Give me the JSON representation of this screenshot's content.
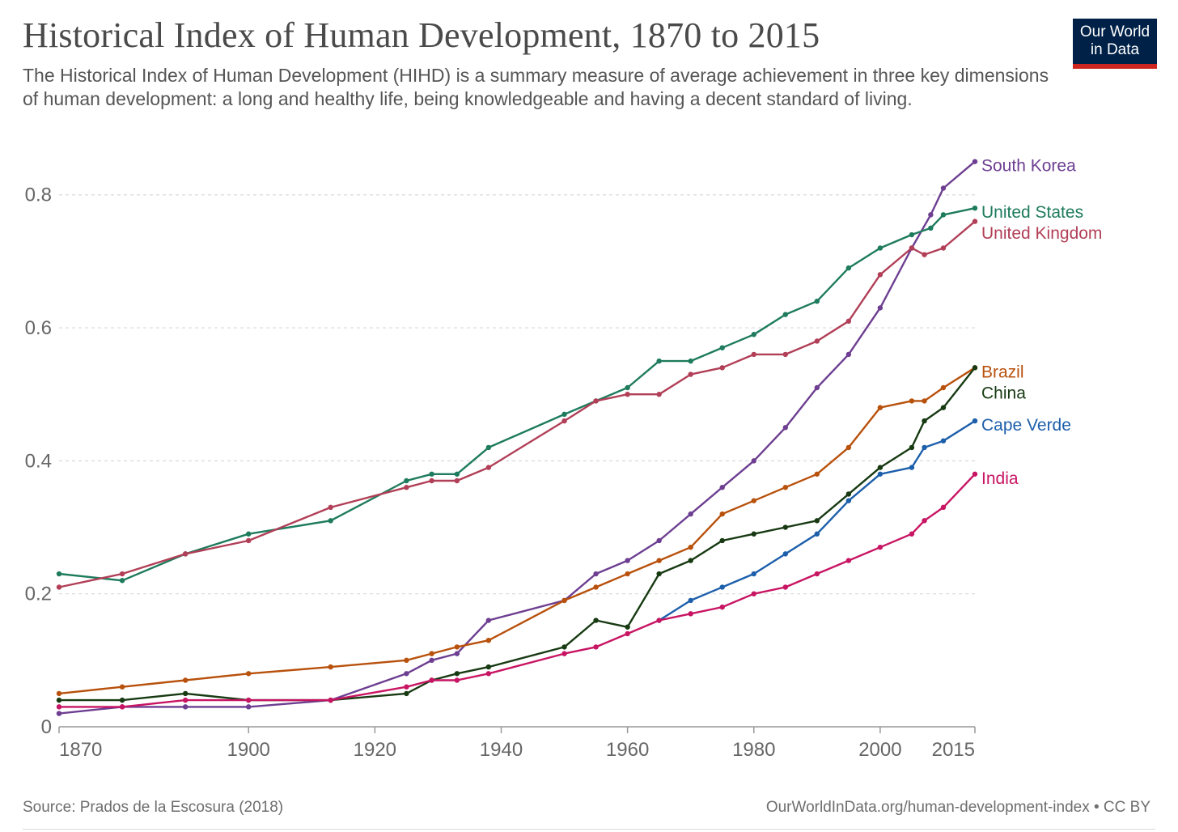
{
  "header": {
    "title": "Historical Index of Human Development, 1870 to 2015",
    "subtitle": "The Historical Index of Human Development (HIHD) is a summary measure of average achievement in three key dimensions of human development: a long and healthy life, being knowledgeable and having a decent standard of living."
  },
  "logo": {
    "line1": "Our World",
    "line2": "in Data",
    "bg_color": "#002147",
    "accent_color": "#ce261e"
  },
  "footer": {
    "source": "Source: Prados de la Escosura (2018)",
    "license": "OurWorldInData.org/human-development-index • CC BY"
  },
  "chart_data": {
    "type": "line",
    "title": "Historical Index of Human Development, 1870 to 2015",
    "xlabel": "",
    "ylabel": "",
    "xlim": [
      1870,
      2015
    ],
    "ylim": [
      0,
      0.88
    ],
    "x_ticks": [
      1870,
      1900,
      1920,
      1940,
      1960,
      1980,
      2000,
      2015
    ],
    "y_ticks": [
      0,
      0.2,
      0.4,
      0.6,
      0.8
    ],
    "y_tick_labels": [
      "0",
      "0.2",
      "0.4",
      "0.6",
      "0.8"
    ],
    "grid": "horizontal dashed",
    "legend": "line-end labels at right",
    "series": [
      {
        "name": "South Korea",
        "color": "#6d3e91",
        "x": [
          1870,
          1880,
          1890,
          1900,
          1913,
          1925,
          1929,
          1933,
          1938,
          1950,
          1955,
          1960,
          1965,
          1970,
          1975,
          1980,
          1985,
          1990,
          1995,
          2000,
          2005,
          2008,
          2010,
          2015
        ],
        "y": [
          0.02,
          0.03,
          0.03,
          0.03,
          0.04,
          0.08,
          0.1,
          0.11,
          0.16,
          0.19,
          0.23,
          0.25,
          0.28,
          0.32,
          0.36,
          0.4,
          0.45,
          0.51,
          0.56,
          0.63,
          0.72,
          0.77,
          0.81,
          0.85
        ]
      },
      {
        "name": "United States",
        "color": "#1e7b5d",
        "x": [
          1870,
          1880,
          1890,
          1900,
          1913,
          1925,
          1929,
          1933,
          1938,
          1950,
          1955,
          1960,
          1965,
          1970,
          1975,
          1980,
          1985,
          1990,
          1995,
          2000,
          2005,
          2008,
          2010,
          2015
        ],
        "y": [
          0.23,
          0.22,
          0.26,
          0.29,
          0.31,
          0.37,
          0.38,
          0.38,
          0.42,
          0.47,
          0.49,
          0.51,
          0.55,
          0.55,
          0.57,
          0.59,
          0.62,
          0.64,
          0.69,
          0.72,
          0.74,
          0.75,
          0.77,
          0.78
        ]
      },
      {
        "name": "United Kingdom",
        "color": "#b13f57",
        "x": [
          1870,
          1880,
          1890,
          1900,
          1913,
          1925,
          1929,
          1933,
          1938,
          1950,
          1955,
          1960,
          1965,
          1970,
          1975,
          1980,
          1985,
          1990,
          1995,
          2000,
          2005,
          2007,
          2010,
          2015
        ],
        "y": [
          0.21,
          0.23,
          0.26,
          0.28,
          0.33,
          0.36,
          0.37,
          0.37,
          0.39,
          0.46,
          0.49,
          0.5,
          0.5,
          0.53,
          0.54,
          0.56,
          0.56,
          0.58,
          0.61,
          0.68,
          0.72,
          0.71,
          0.72,
          0.76
        ]
      },
      {
        "name": "Brazil",
        "color": "#b8510c",
        "x": [
          1870,
          1880,
          1890,
          1900,
          1913,
          1925,
          1929,
          1933,
          1938,
          1950,
          1955,
          1960,
          1965,
          1970,
          1975,
          1980,
          1985,
          1990,
          1995,
          2000,
          2005,
          2007,
          2010,
          2015
        ],
        "y": [
          0.05,
          0.06,
          0.07,
          0.08,
          0.09,
          0.1,
          0.11,
          0.12,
          0.13,
          0.19,
          0.21,
          0.23,
          0.25,
          0.27,
          0.32,
          0.34,
          0.36,
          0.38,
          0.42,
          0.48,
          0.49,
          0.49,
          0.51,
          0.54
        ]
      },
      {
        "name": "China",
        "color": "#173a12",
        "x": [
          1870,
          1880,
          1890,
          1900,
          1913,
          1925,
          1929,
          1933,
          1938,
          1950,
          1955,
          1960,
          1965,
          1970,
          1975,
          1980,
          1985,
          1990,
          1995,
          2000,
          2005,
          2007,
          2010,
          2015
        ],
        "y": [
          0.04,
          0.04,
          0.05,
          0.04,
          0.04,
          0.05,
          0.07,
          0.08,
          0.09,
          0.12,
          0.16,
          0.15,
          0.23,
          0.25,
          0.28,
          0.29,
          0.3,
          0.31,
          0.35,
          0.39,
          0.42,
          0.46,
          0.48,
          0.54
        ]
      },
      {
        "name": "Cape Verde",
        "color": "#1d5fab",
        "x": [
          1965,
          1970,
          1975,
          1980,
          1985,
          1990,
          1995,
          2000,
          2005,
          2007,
          2010,
          2015
        ],
        "y": [
          0.16,
          0.19,
          0.21,
          0.23,
          0.26,
          0.29,
          0.34,
          0.38,
          0.39,
          0.42,
          0.43,
          0.46
        ]
      },
      {
        "name": "India",
        "color": "#c81563",
        "x": [
          1870,
          1880,
          1890,
          1900,
          1913,
          1925,
          1929,
          1933,
          1938,
          1950,
          1955,
          1960,
          1965,
          1970,
          1975,
          1980,
          1985,
          1990,
          1995,
          2000,
          2005,
          2007,
          2010,
          2015
        ],
        "y": [
          0.03,
          0.03,
          0.04,
          0.04,
          0.04,
          0.06,
          0.07,
          0.07,
          0.08,
          0.11,
          0.12,
          0.14,
          0.16,
          0.17,
          0.18,
          0.2,
          0.21,
          0.23,
          0.25,
          0.27,
          0.29,
          0.31,
          0.33,
          0.38
        ]
      }
    ]
  }
}
